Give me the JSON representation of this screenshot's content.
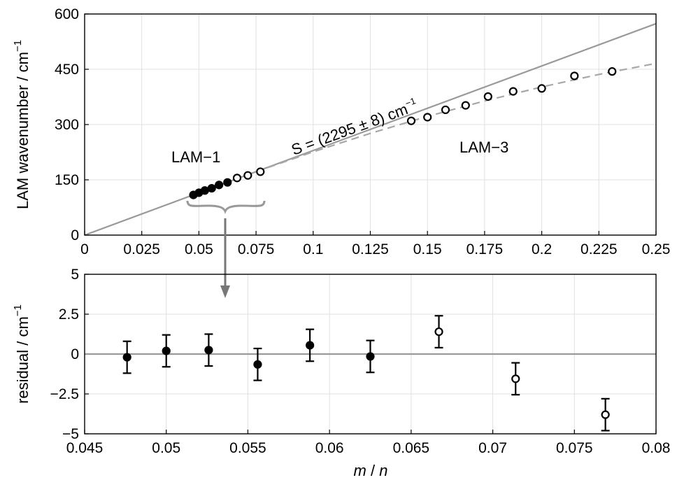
{
  "chart_data": [
    {
      "type": "scatter",
      "ylabel": "LAM wavenumber / cm",
      "ylabel_sup": "−1",
      "xlim": [
        0,
        0.25
      ],
      "ylim": [
        0,
        600
      ],
      "xticks": [
        0,
        0.025,
        0.05,
        0.075,
        0.1,
        0.125,
        0.15,
        0.175,
        0.2,
        0.225,
        0.25
      ],
      "xtick_labels": [
        "0",
        "0.025",
        "0.05",
        "0.075",
        "0.1",
        "0.125",
        "0.15",
        "0.175",
        "0.2",
        "0.225",
        "0.25"
      ],
      "yticks": [
        0,
        150,
        300,
        450,
        600
      ],
      "ytick_labels": [
        "0",
        "150",
        "300",
        "450",
        "600"
      ],
      "grid": true,
      "series": [
        {
          "name": "LAM−1",
          "marker": "filled circle",
          "x": [
            0.0476,
            0.05,
            0.0526,
            0.0556,
            0.0588,
            0.0625
          ],
          "y": [
            109,
            115,
            121,
            127,
            136,
            143
          ]
        },
        {
          "marker": "open circle",
          "x": [
            0.0667,
            0.0714,
            0.0769
          ],
          "y": [
            155,
            162,
            172
          ]
        },
        {
          "name": "LAM−3",
          "marker": "open circle",
          "x": [
            0.1429,
            0.15,
            0.1579,
            0.1667,
            0.1765,
            0.1875,
            0.2,
            0.2143,
            0.2308
          ],
          "y": [
            310,
            320,
            340,
            352,
            376,
            390,
            398,
            432,
            444
          ]
        }
      ],
      "fit_line": {
        "style": "solid gray",
        "slope": 2295,
        "x": [
          0,
          0.25
        ],
        "y": [
          0,
          573.75
        ]
      },
      "dashed_curve": {
        "style": "dashed gray",
        "x": [
          0.075,
          0.1,
          0.125,
          0.15,
          0.175,
          0.2,
          0.225,
          0.25
        ],
        "y": [
          172,
          226,
          276,
          322,
          364,
          402,
          436,
          466
        ]
      },
      "annotations": {
        "slope_label": "S = (2295 ± 8) cm",
        "slope_label_sup": "−1",
        "lam1": "LAM−1",
        "lam3": "LAM−3"
      }
    },
    {
      "type": "scatter",
      "xlabel_m": "m",
      "xlabel_sep": " / ",
      "xlabel_n": "n",
      "ylabel": "residual / cm",
      "ylabel_sup": "−1",
      "xlim": [
        0.045,
        0.08
      ],
      "ylim": [
        -5,
        5
      ],
      "xticks": [
        0.045,
        0.05,
        0.055,
        0.06,
        0.065,
        0.07,
        0.075,
        0.08
      ],
      "xtick_labels": [
        "0.045",
        "0.05",
        "0.055",
        "0.06",
        "0.065",
        "0.07",
        "0.075",
        "0.08"
      ],
      "yticks": [
        -5,
        -2.5,
        0,
        2.5,
        5
      ],
      "ytick_labels": [
        "−5",
        "−2.5",
        "0",
        "2.5",
        "5"
      ],
      "grid": true,
      "error": 1.0,
      "series": [
        {
          "marker": "filled circle",
          "x": [
            0.0476,
            0.05,
            0.0526,
            0.0556,
            0.0588,
            0.0625
          ],
          "y": [
            -0.2,
            0.2,
            0.25,
            -0.65,
            0.55,
            -0.15
          ]
        },
        {
          "marker": "open circle",
          "x": [
            0.0667,
            0.0714,
            0.0769
          ],
          "y": [
            1.4,
            -1.55,
            -3.8
          ]
        }
      ]
    }
  ]
}
